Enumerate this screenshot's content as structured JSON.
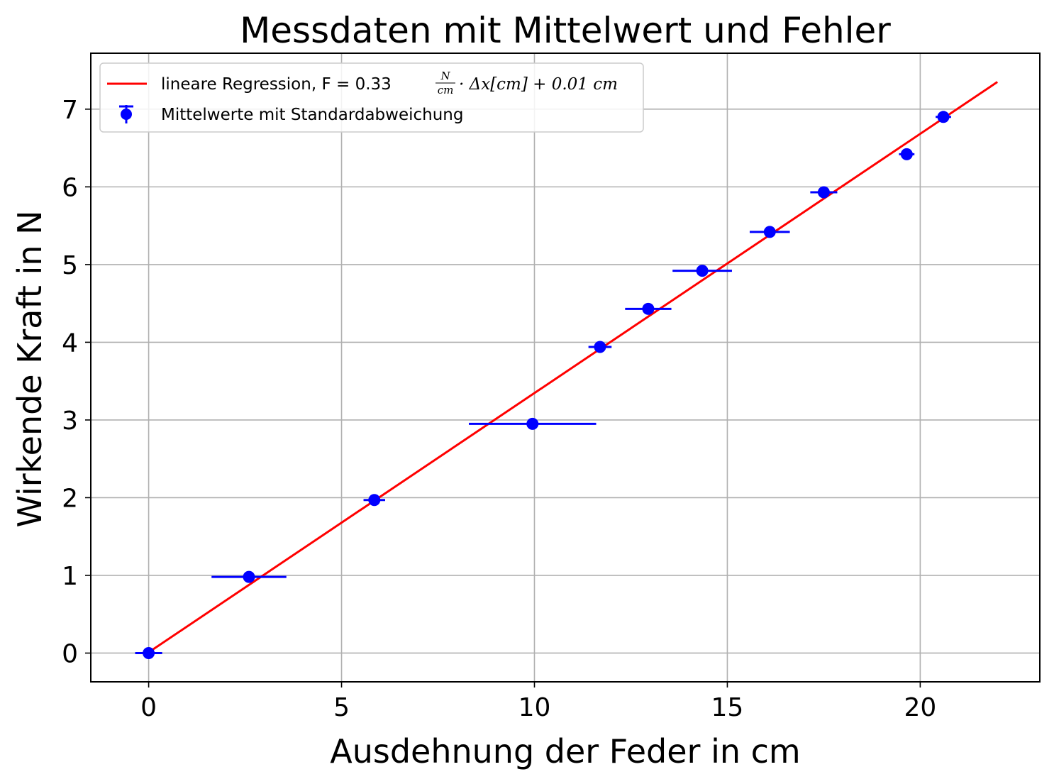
{
  "chart_data": {
    "type": "scatter",
    "title": "Messdaten mit Mittelwert und Fehler",
    "xlabel": "Ausdehnung der Feder in cm",
    "ylabel": "Wirkende Kraft in N",
    "xlim": [
      -1.5,
      23.1
    ],
    "ylim": [
      -0.37,
      7.72
    ],
    "xticks": [
      0,
      5,
      10,
      15,
      20
    ],
    "yticks": [
      0,
      1,
      2,
      3,
      4,
      5,
      6,
      7
    ],
    "grid": true,
    "legend_position": "top-left",
    "series": [
      {
        "name": "Mittelwerte mit Standardabweichung",
        "kind": "errorbar",
        "color": "#0000ff",
        "points": [
          {
            "x": 0.0,
            "y": 0.0,
            "xerr": 0.35
          },
          {
            "x": 2.6,
            "y": 0.98,
            "xerr": 0.97
          },
          {
            "x": 5.85,
            "y": 1.97,
            "xerr": 0.28
          },
          {
            "x": 9.95,
            "y": 2.95,
            "xerr": 1.65
          },
          {
            "x": 11.7,
            "y": 3.94,
            "xerr": 0.3
          },
          {
            "x": 12.95,
            "y": 4.43,
            "xerr": 0.6
          },
          {
            "x": 14.35,
            "y": 4.92,
            "xerr": 0.77
          },
          {
            "x": 16.1,
            "y": 5.42,
            "xerr": 0.52
          },
          {
            "x": 17.5,
            "y": 5.93,
            "xerr": 0.35
          },
          {
            "x": 19.65,
            "y": 6.42,
            "xerr": 0.2
          },
          {
            "x": 20.6,
            "y": 6.9,
            "xerr": 0.2
          }
        ]
      },
      {
        "name": "lineare Regression, F = 0.33",
        "kind": "line",
        "color": "#ff0000",
        "x": [
          0.0,
          22.0
        ],
        "y": [
          0.01,
          7.35
        ]
      }
    ],
    "legend": {
      "regression_prefix": "lineare Regression, F = 0.33",
      "frac_num": "N",
      "frac_den": "cm",
      "regression_suffix": "· Δx[cm] + 0.01 cm",
      "errorbar_label": "Mittelwerte mit Standardabweichung"
    }
  }
}
